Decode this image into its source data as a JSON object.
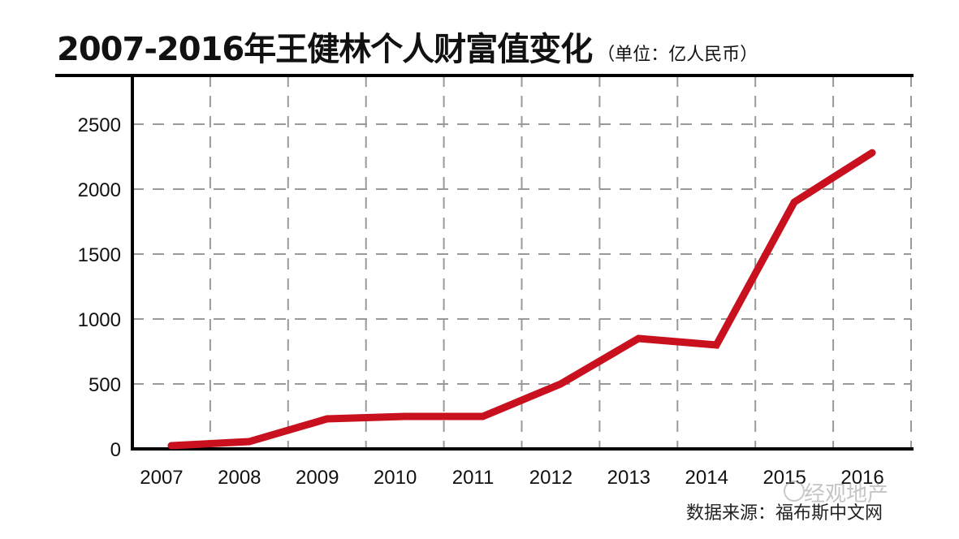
{
  "chart_data": {
    "type": "line",
    "title": "2007-2016年王健林个人财富值变化",
    "unit": "（单位：亿人民币）",
    "xlabel": "",
    "ylabel": "",
    "categories": [
      "2007",
      "2008",
      "2009",
      "2010",
      "2011",
      "2012",
      "2013",
      "2014",
      "2015",
      "2016"
    ],
    "series": [
      {
        "name": "王健林个人财富值",
        "values": [
          25,
          56,
          231,
          250,
          250,
          500,
          850,
          800,
          1900,
          2280
        ],
        "color": "#c8101e"
      }
    ],
    "yticks": [
      0,
      500,
      1000,
      1500,
      2000,
      2500
    ],
    "ylim": [
      0,
      2875
    ],
    "grid": true,
    "source": "数据来源：福布斯中文网",
    "watermark": "经观地产"
  }
}
